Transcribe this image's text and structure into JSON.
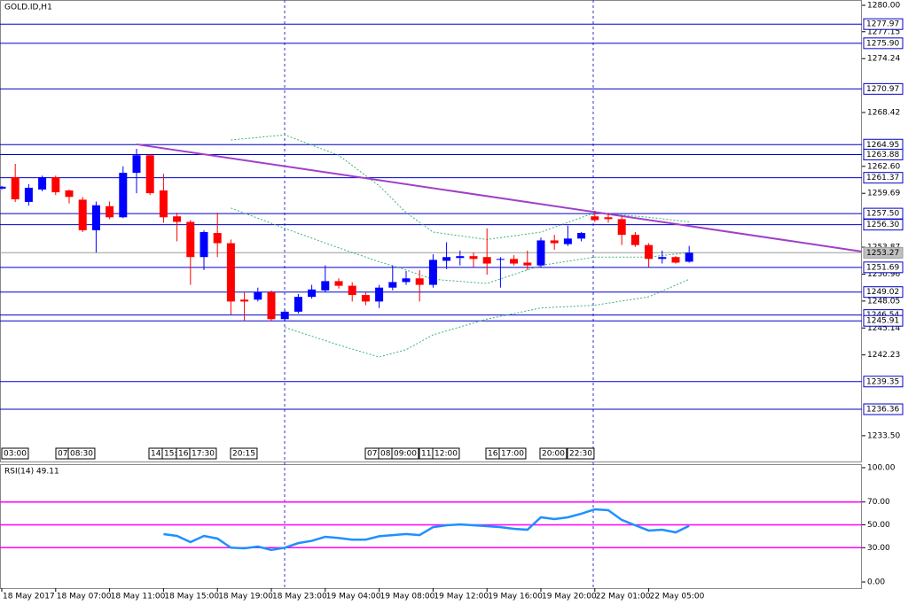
{
  "chart_data": [
    {
      "type": "candlestick",
      "title": "GOLD.ID,H1",
      "categories": [
        "18 May 2017",
        null,
        null,
        null,
        "18 May 07:00",
        null,
        null,
        null,
        "18 May 11:00",
        null,
        null,
        null,
        "18 May 15:00",
        null,
        null,
        null,
        "18 May 19:00",
        null,
        null,
        null,
        "18 May 23:00",
        null,
        null,
        null,
        "19 May 04:00",
        null,
        null,
        null,
        "19 May 08:00",
        null,
        null,
        null,
        "19 May 12:00",
        null,
        null,
        null,
        "19 May 16:00",
        null,
        null,
        null,
        "19 May 20:00",
        null,
        null,
        null,
        "22 May 01:00",
        null,
        null,
        null,
        "22 May 05:00",
        null,
        null,
        null
      ],
      "open": [
        1260.2,
        1261.44,
        1258.76,
        1260.1,
        1261.44,
        1260.0,
        1259.0,
        1255.7,
        1258.3,
        1257.1,
        1261.9,
        1263.8,
        1260.0,
        1257.2,
        1256.6,
        1252.8,
        1255.4,
        1254.3,
        1248.2,
        1248.2,
        1249.0,
        1246.1,
        1246.9,
        1248.5,
        1249.2,
        1250.2,
        1249.7,
        1248.7,
        1248.0,
        1249.5,
        1250.1,
        1250.5,
        1249.8,
        1252.4,
        1252.7,
        1252.9,
        1252.8,
        1252.5,
        1252.6,
        1252.2,
        1251.9,
        1254.6,
        1254.2,
        1254.8,
        1257.2,
        1257.1,
        1256.9,
        1255.2,
        1254.1,
        1252.6,
        1252.8,
        1252.3
      ],
      "high": [
        1260.5,
        1262.87,
        1260.67,
        1261.6,
        1261.6,
        1260.1,
        1259.3,
        1258.8,
        1258.8,
        1262.6,
        1264.5,
        1263.9,
        1261.8,
        1257.6,
        1256.8,
        1255.7,
        1257.6,
        1254.7,
        1249.0,
        1249.5,
        1249.2,
        1247.1,
        1248.8,
        1249.8,
        1251.9,
        1250.5,
        1250.1,
        1249.0,
        1249.8,
        1251.9,
        1251.3,
        1251.4,
        1253.1,
        1254.4,
        1253.5,
        1253.3,
        1255.9,
        1252.8,
        1253.0,
        1253.5,
        1254.9,
        1255.2,
        1256.2,
        1255.5,
        1257.8,
        1257.6,
        1257.2,
        1255.5,
        1254.3,
        1253.5,
        1252.9,
        1254.0
      ],
      "low": [
        1260.1,
        1258.76,
        1258.37,
        1259.9,
        1259.5,
        1258.6,
        1255.5,
        1253.3,
        1256.9,
        1257.0,
        1259.7,
        1259.5,
        1256.5,
        1254.5,
        1249.8,
        1251.4,
        1252.8,
        1246.6,
        1245.9,
        1248.0,
        1245.9,
        1245.9,
        1246.7,
        1248.3,
        1249.0,
        1249.4,
        1248.0,
        1247.6,
        1247.3,
        1249.2,
        1249.8,
        1248.0,
        1249.5,
        1251.5,
        1251.9,
        1251.7,
        1250.9,
        1249.5,
        1251.9,
        1251.4,
        1251.7,
        1253.6,
        1254.0,
        1254.5,
        1256.6,
        1256.5,
        1254.1,
        1253.9,
        1251.7,
        1252.1,
        1252.1,
        1252.2
      ],
      "close": [
        1260.4,
        1259.04,
        1260.29,
        1261.44,
        1259.8,
        1259.3,
        1255.7,
        1258.4,
        1257.1,
        1261.9,
        1263.8,
        1259.7,
        1257.1,
        1256.6,
        1252.8,
        1255.5,
        1254.3,
        1248.0,
        1248.0,
        1249.0,
        1246.1,
        1246.9,
        1248.5,
        1249.3,
        1250.2,
        1249.7,
        1248.7,
        1248.0,
        1249.5,
        1250.1,
        1250.5,
        1249.8,
        1252.5,
        1252.8,
        1252.9,
        1252.6,
        1252.1,
        1252.6,
        1252.1,
        1251.9,
        1254.6,
        1254.3,
        1254.8,
        1255.4,
        1256.8,
        1256.9,
        1255.2,
        1254.1,
        1252.6,
        1252.8,
        1252.2,
        1253.27
      ],
      "up_color": "#0000ff",
      "down_color": "#ff0000",
      "ylim": [
        1230.81,
        1280
      ],
      "yticks": [
        {
          "value": 1280,
          "label": "1280.00"
        },
        {
          "value": 1277.15,
          "label": "1277.15"
        },
        {
          "value": 1274.24,
          "label": "1274.24"
        },
        {
          "value": 1268.42,
          "label": "1268.42"
        },
        {
          "value": 1262.6,
          "label": "1262.60"
        },
        {
          "value": 1259.69,
          "label": "1259.69"
        },
        {
          "value": 1253.87,
          "label": "1253.87"
        },
        {
          "value": 1250.96,
          "label": "1250.96"
        },
        {
          "value": 1248.05,
          "label": "1248.05"
        },
        {
          "value": 1245.14,
          "label": "1245.14"
        },
        {
          "value": 1242.23,
          "label": "1242.23"
        },
        {
          "value": 1233.5,
          "label": "1233.50"
        }
      ],
      "levels": [
        {
          "value": 1277.97,
          "label": "1277.97"
        },
        {
          "value": 1275.9,
          "label": "1275.90"
        },
        {
          "value": 1270.97,
          "label": "1270.97"
        },
        {
          "value": 1264.95,
          "label": "1264.95"
        },
        {
          "value": 1263.88,
          "label": "1263.88"
        },
        {
          "value": 1261.37,
          "label": "1261.37"
        },
        {
          "value": 1257.5,
          "label": "1257.50"
        },
        {
          "value": 1256.3,
          "label": "1256.30"
        },
        {
          "value": 1251.69,
          "label": "1251.69"
        },
        {
          "value": 1249.02,
          "label": "1249.02"
        },
        {
          "value": 1246.54,
          "label": "1246.54"
        },
        {
          "value": 1245.91,
          "label": "1245.91"
        },
        {
          "value": 1239.35,
          "label": "1239.35"
        },
        {
          "value": 1236.36,
          "label": "1236.36"
        }
      ],
      "level_color": "#0000cc",
      "last_price": {
        "value": 1253.27,
        "label": "1253.27"
      },
      "trendline": [
        1264.98,
        1253.4
      ],
      "trendline_color": "#a040c8",
      "bands": [
        {
          "x": [
            17,
            21,
            25,
            28,
            30,
            32,
            36,
            40,
            44,
            48,
            51
          ],
          "values": [
            1265.45,
            1266.0,
            1263.8,
            1260.5,
            1257.6,
            1255.5,
            1254.7,
            1255.5,
            1257.6,
            1257.1,
            1256.6
          ]
        },
        {
          "x": [
            17,
            21,
            25,
            28,
            30,
            32,
            36,
            40,
            44,
            48,
            51
          ],
          "values": [
            1258.1,
            1255.9,
            1253.8,
            1252.3,
            1251.4,
            1250.4,
            1249.95,
            1251.9,
            1252.8,
            1252.8,
            1253.3
          ]
        },
        {
          "x": [
            21,
            25,
            28,
            30,
            32,
            36,
            40,
            44,
            48,
            51
          ],
          "values": [
            1245.2,
            1243.3,
            1242.0,
            1242.8,
            1244.4,
            1246.1,
            1247.3,
            1247.6,
            1248.5,
            1250.4
          ]
        }
      ],
      "band_color": "#3cb371",
      "markers": [
        "03:00",
        "07:",
        "08:30",
        "14:",
        "15:",
        "16:",
        "17:30",
        "20:15",
        "07:",
        "08:",
        "09:00",
        "11:",
        "12:00",
        "16:",
        "17:00",
        "20:00",
        "22:30"
      ]
    },
    {
      "type": "line",
      "title": "RSI(14) 49.11",
      "color": "#1e90ff",
      "values": [
        null,
        null,
        null,
        null,
        null,
        null,
        null,
        null,
        null,
        null,
        null,
        null,
        41.9,
        40.3,
        34.9,
        40.3,
        38,
        30,
        29.5,
        31,
        28,
        30,
        34,
        36,
        39.5,
        38.5,
        37,
        37,
        40,
        41,
        42,
        41,
        48,
        49.6,
        50.4,
        49.6,
        48.8,
        48,
        46.5,
        45.7,
        56.6,
        55,
        56.6,
        59.7,
        63.6,
        62.8,
        54.3,
        49.6,
        45,
        45.7,
        43.4,
        49.11
      ],
      "ylim": [
        0,
        100
      ],
      "yticks": [
        {
          "value": 100,
          "label": "100.00"
        },
        {
          "value": 70,
          "label": "70.00"
        },
        {
          "value": 50,
          "label": "50.00"
        },
        {
          "value": 30,
          "label": "30.00"
        },
        {
          "value": 0,
          "label": "0.00"
        }
      ],
      "levels": [
        70,
        50,
        30
      ],
      "level_color": "#ff00ff"
    }
  ]
}
